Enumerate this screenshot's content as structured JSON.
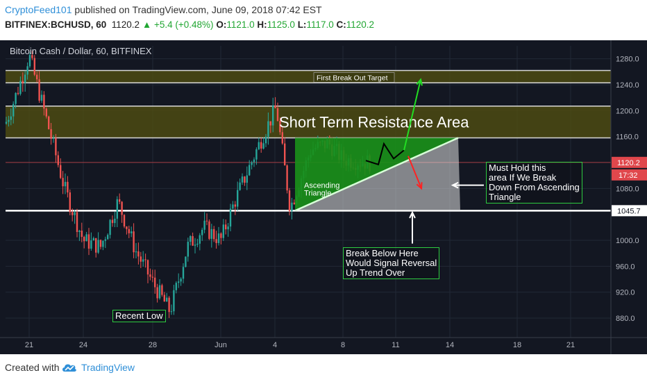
{
  "header": {
    "author": "CryptoFeed101",
    "published_text": "published on TradingView.com, June 09, 2018 07:42 EST",
    "symbol": "BITFINEX:BCHUSD, 60",
    "last": "1120.2",
    "change": "+5.4 (+0.48%)",
    "o_label": "O:",
    "o_value": "1121.0",
    "h_label": "H:",
    "h_value": "1125.0",
    "l_label": "L:",
    "l_value": "1117.0",
    "c_label": "C:",
    "c_value": "1120.2"
  },
  "footer": {
    "created_with": "Created with",
    "brand": "TradingView"
  },
  "colors": {
    "background": "#131722",
    "up": "#26a69a",
    "down": "#ef5350",
    "resistance_zone": "#4c4a12",
    "triangle": "#1a8f1a",
    "annotation_border": "#2ecc40",
    "price_badge": "#e0474c"
  },
  "chart_data": {
    "type": "candlestick",
    "title": "Bitcoin Cash / Dollar, 60, BITFINEX",
    "y_ticks": [
      "1280.0",
      "1240.0",
      "1200.0",
      "1160.0",
      "1120.0",
      "1080.0",
      "1045.7",
      "1000.0",
      "960.0",
      "920.0",
      "880.0"
    ],
    "x_ticks": [
      "21",
      "24",
      "28",
      "Jun",
      "4",
      "8",
      "11",
      "14",
      "18",
      "21"
    ],
    "ylim": [
      850,
      1300
    ],
    "price_labels": {
      "current": "1120.2",
      "countdown": "17:32",
      "support": "1045.7"
    },
    "close_path": {
      "x": [
        "May 20",
        "May 20 12:00",
        "May 21",
        "May 22",
        "May 23",
        "May 24",
        "May 25",
        "May 26",
        "May 27",
        "May 28",
        "May 29",
        "May 30",
        "May 31",
        "Jun 1",
        "Jun 2",
        "Jun 3",
        "Jun 4",
        "Jun 5",
        "Jun 6",
        "Jun 7",
        "Jun 8",
        "Jun 9"
      ],
      "close": [
        1180,
        1230,
        1285,
        1190,
        1080,
        1000,
        990,
        1060,
        985,
        935,
        890,
        990,
        1020,
        1000,
        1060,
        1160,
        1205,
        1050,
        1140,
        1150,
        1125,
        1120
      ]
    },
    "zones": [
      {
        "label": "First Break Out Target",
        "from": 1243,
        "to": 1262
      },
      {
        "label": "Short Term Resistance Area",
        "from": 1158,
        "to": 1207
      }
    ],
    "support_level": 1045.7,
    "triangle_label": "Ascending Triangle",
    "annotations": {
      "recent_low": "Recent Low",
      "break_below": [
        "Break Below Here",
        "Would Signal Reversal",
        "Up Trend Over"
      ],
      "must_hold": [
        "Must Hold this",
        "area If We Break",
        "Down From Ascending",
        "Triangle"
      ]
    }
  }
}
